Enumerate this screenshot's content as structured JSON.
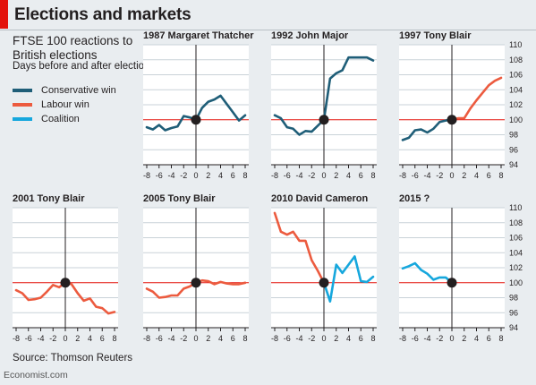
{
  "header": {
    "title": "Elections and markets",
    "subtitle": "FTSE 100 reactions to British elections",
    "subtitle2": "Days before and after election"
  },
  "legend": [
    {
      "label": "Conservative win",
      "color": "#1f5e78"
    },
    {
      "label": "Labour win",
      "color": "#ec5b3f"
    },
    {
      "label": "Coalition",
      "color": "#16a7dd"
    }
  ],
  "footer": {
    "source": "Source: Thomson Reuters",
    "brand": "Economist.com"
  },
  "chart_data": [
    {
      "type": "line",
      "title": "1987 Margaret Thatcher",
      "series": [
        {
          "name": "Conservative win",
          "color": "#1f5e78",
          "values": [
            [
              -8,
              99.0
            ],
            [
              -7,
              98.7
            ],
            [
              -6,
              99.3
            ],
            [
              -5,
              98.6
            ],
            [
              -4,
              98.9
            ],
            [
              -3,
              99.1
            ],
            [
              -2,
              100.5
            ],
            [
              -1,
              100.3
            ],
            [
              0,
              100
            ],
            [
              1,
              101.6
            ],
            [
              2,
              102.4
            ],
            [
              3,
              102.7
            ],
            [
              4,
              103.2
            ],
            [
              5,
              102.1
            ],
            [
              6,
              101.0
            ],
            [
              7,
              99.9
            ],
            [
              8,
              100.6
            ]
          ]
        }
      ],
      "xlim": [
        -8,
        8
      ],
      "ylim": [
        94,
        110
      ],
      "xticks": [
        -8,
        -6,
        -4,
        -2,
        0,
        2,
        4,
        6,
        8
      ],
      "yticks": [
        94,
        96,
        98,
        100,
        102,
        104,
        106,
        108,
        110
      ]
    },
    {
      "type": "line",
      "title": "1992 John Major",
      "series": [
        {
          "name": "Conservative win",
          "color": "#1f5e78",
          "values": [
            [
              -8,
              100.6
            ],
            [
              -7,
              100.2
            ],
            [
              -6,
              99.0
            ],
            [
              -5,
              98.8
            ],
            [
              -4,
              98.0
            ],
            [
              -3,
              98.5
            ],
            [
              -2,
              98.4
            ],
            [
              -1,
              99.2
            ],
            [
              0,
              100
            ],
            [
              1,
              105.5
            ],
            [
              2,
              106.2
            ],
            [
              3,
              106.6
            ],
            [
              4,
              108.3
            ],
            [
              5,
              108.3
            ],
            [
              6,
              108.3
            ],
            [
              7,
              108.3
            ],
            [
              8,
              107.9
            ]
          ]
        }
      ],
      "xlim": [
        -8,
        8
      ],
      "ylim": [
        94,
        110
      ],
      "xticks": [
        -8,
        -6,
        -4,
        -2,
        0,
        2,
        4,
        6,
        8
      ],
      "yticks": [
        94,
        96,
        98,
        100,
        102,
        104,
        106,
        108,
        110
      ]
    },
    {
      "type": "line",
      "title": "1997 Tony Blair",
      "series": [
        {
          "name": "Conservative win",
          "color": "#1f5e78",
          "values": [
            [
              -8,
              97.3
            ],
            [
              -7,
              97.6
            ],
            [
              -6,
              98.6
            ],
            [
              -5,
              98.7
            ],
            [
              -4,
              98.3
            ],
            [
              -3,
              98.8
            ],
            [
              -2,
              99.7
            ],
            [
              -1,
              99.9
            ],
            [
              0,
              100
            ]
          ]
        },
        {
          "name": "Labour win",
          "color": "#ec5b3f",
          "values": [
            [
              0,
              100
            ],
            [
              1,
              100.2
            ],
            [
              2,
              100.2
            ],
            [
              3,
              101.5
            ],
            [
              4,
              102.6
            ],
            [
              5,
              103.6
            ],
            [
              6,
              104.6
            ],
            [
              7,
              105.2
            ],
            [
              8,
              105.6
            ]
          ]
        }
      ],
      "xlim": [
        -8,
        8
      ],
      "ylim": [
        94,
        110
      ],
      "xticks": [
        -8,
        -6,
        -4,
        -2,
        0,
        2,
        4,
        6,
        8
      ],
      "yticks": [
        94,
        96,
        98,
        100,
        102,
        104,
        106,
        108,
        110
      ]
    },
    {
      "type": "line",
      "title": "2001 Tony Blair",
      "series": [
        {
          "name": "Labour win",
          "color": "#ec5b3f",
          "values": [
            [
              -8,
              99.0
            ],
            [
              -7,
              98.6
            ],
            [
              -6,
              97.7
            ],
            [
              -5,
              97.8
            ],
            [
              -4,
              98.0
            ],
            [
              -3,
              98.8
            ],
            [
              -2,
              99.7
            ],
            [
              -1,
              99.4
            ],
            [
              0,
              100
            ],
            [
              1,
              99.8
            ],
            [
              2,
              98.6
            ],
            [
              3,
              97.6
            ],
            [
              4,
              97.9
            ],
            [
              5,
              96.8
            ],
            [
              6,
              96.6
            ],
            [
              7,
              95.9
            ],
            [
              8,
              96.1
            ]
          ]
        }
      ],
      "xlim": [
        -8,
        8
      ],
      "ylim": [
        94,
        110
      ],
      "xticks": [
        -8,
        -6,
        -4,
        -2,
        0,
        2,
        4,
        6,
        8
      ],
      "yticks": [
        94,
        96,
        98,
        100,
        102,
        104,
        106,
        108,
        110
      ]
    },
    {
      "type": "line",
      "title": "2005 Tony Blair",
      "series": [
        {
          "name": "Labour win",
          "color": "#ec5b3f",
          "values": [
            [
              -8,
              99.2
            ],
            [
              -7,
              98.8
            ],
            [
              -6,
              98.0
            ],
            [
              -5,
              98.1
            ],
            [
              -4,
              98.3
            ],
            [
              -3,
              98.3
            ],
            [
              -2,
              99.2
            ],
            [
              -1,
              99.5
            ],
            [
              0,
              100
            ],
            [
              1,
              100.3
            ],
            [
              2,
              100.2
            ],
            [
              3,
              99.8
            ],
            [
              4,
              100.1
            ],
            [
              5,
              99.9
            ],
            [
              6,
              99.8
            ],
            [
              7,
              99.8
            ],
            [
              8,
              100
            ]
          ]
        }
      ],
      "xlim": [
        -8,
        8
      ],
      "ylim": [
        94,
        110
      ],
      "xticks": [
        -8,
        -6,
        -4,
        -2,
        0,
        2,
        4,
        6,
        8
      ],
      "yticks": [
        94,
        96,
        98,
        100,
        102,
        104,
        106,
        108,
        110
      ]
    },
    {
      "type": "line",
      "title": "2010 David Cameron",
      "series": [
        {
          "name": "Labour win",
          "color": "#ec5b3f",
          "values": [
            [
              -8,
              109.3
            ],
            [
              -7,
              106.8
            ],
            [
              -6,
              106.4
            ],
            [
              -5,
              106.8
            ],
            [
              -4,
              105.6
            ],
            [
              -3,
              105.6
            ],
            [
              -2,
              103.0
            ],
            [
              -1,
              101.6
            ],
            [
              0,
              100
            ]
          ]
        },
        {
          "name": "Coalition",
          "color": "#16a7dd",
          "values": [
            [
              0,
              100
            ],
            [
              1,
              97.5
            ],
            [
              2,
              102.4
            ],
            [
              3,
              101.3
            ],
            [
              4,
              102.4
            ],
            [
              5,
              103.5
            ],
            [
              6,
              100.2
            ],
            [
              7,
              100.1
            ],
            [
              8,
              100.8
            ]
          ]
        }
      ],
      "xlim": [
        -8,
        8
      ],
      "ylim": [
        94,
        110
      ],
      "xticks": [
        -8,
        -6,
        -4,
        -2,
        0,
        2,
        4,
        6,
        8
      ],
      "yticks": [
        94,
        96,
        98,
        100,
        102,
        104,
        106,
        108,
        110
      ]
    },
    {
      "type": "line",
      "title": "2015 ?",
      "series": [
        {
          "name": "Coalition",
          "color": "#16a7dd",
          "values": [
            [
              -8,
              101.9
            ],
            [
              -7,
              102.2
            ],
            [
              -6,
              102.6
            ],
            [
              -5,
              101.7
            ],
            [
              -4,
              101.2
            ],
            [
              -3,
              100.4
            ],
            [
              -2,
              100.7
            ],
            [
              -1,
              100.7
            ],
            [
              0,
              100
            ]
          ]
        }
      ],
      "xlim": [
        -8,
        8
      ],
      "ylim": [
        94,
        110
      ],
      "xticks": [
        -8,
        -6,
        -4,
        -2,
        0,
        2,
        4,
        6,
        8
      ],
      "yticks": [
        94,
        96,
        98,
        100,
        102,
        104,
        106,
        108,
        110
      ]
    }
  ]
}
